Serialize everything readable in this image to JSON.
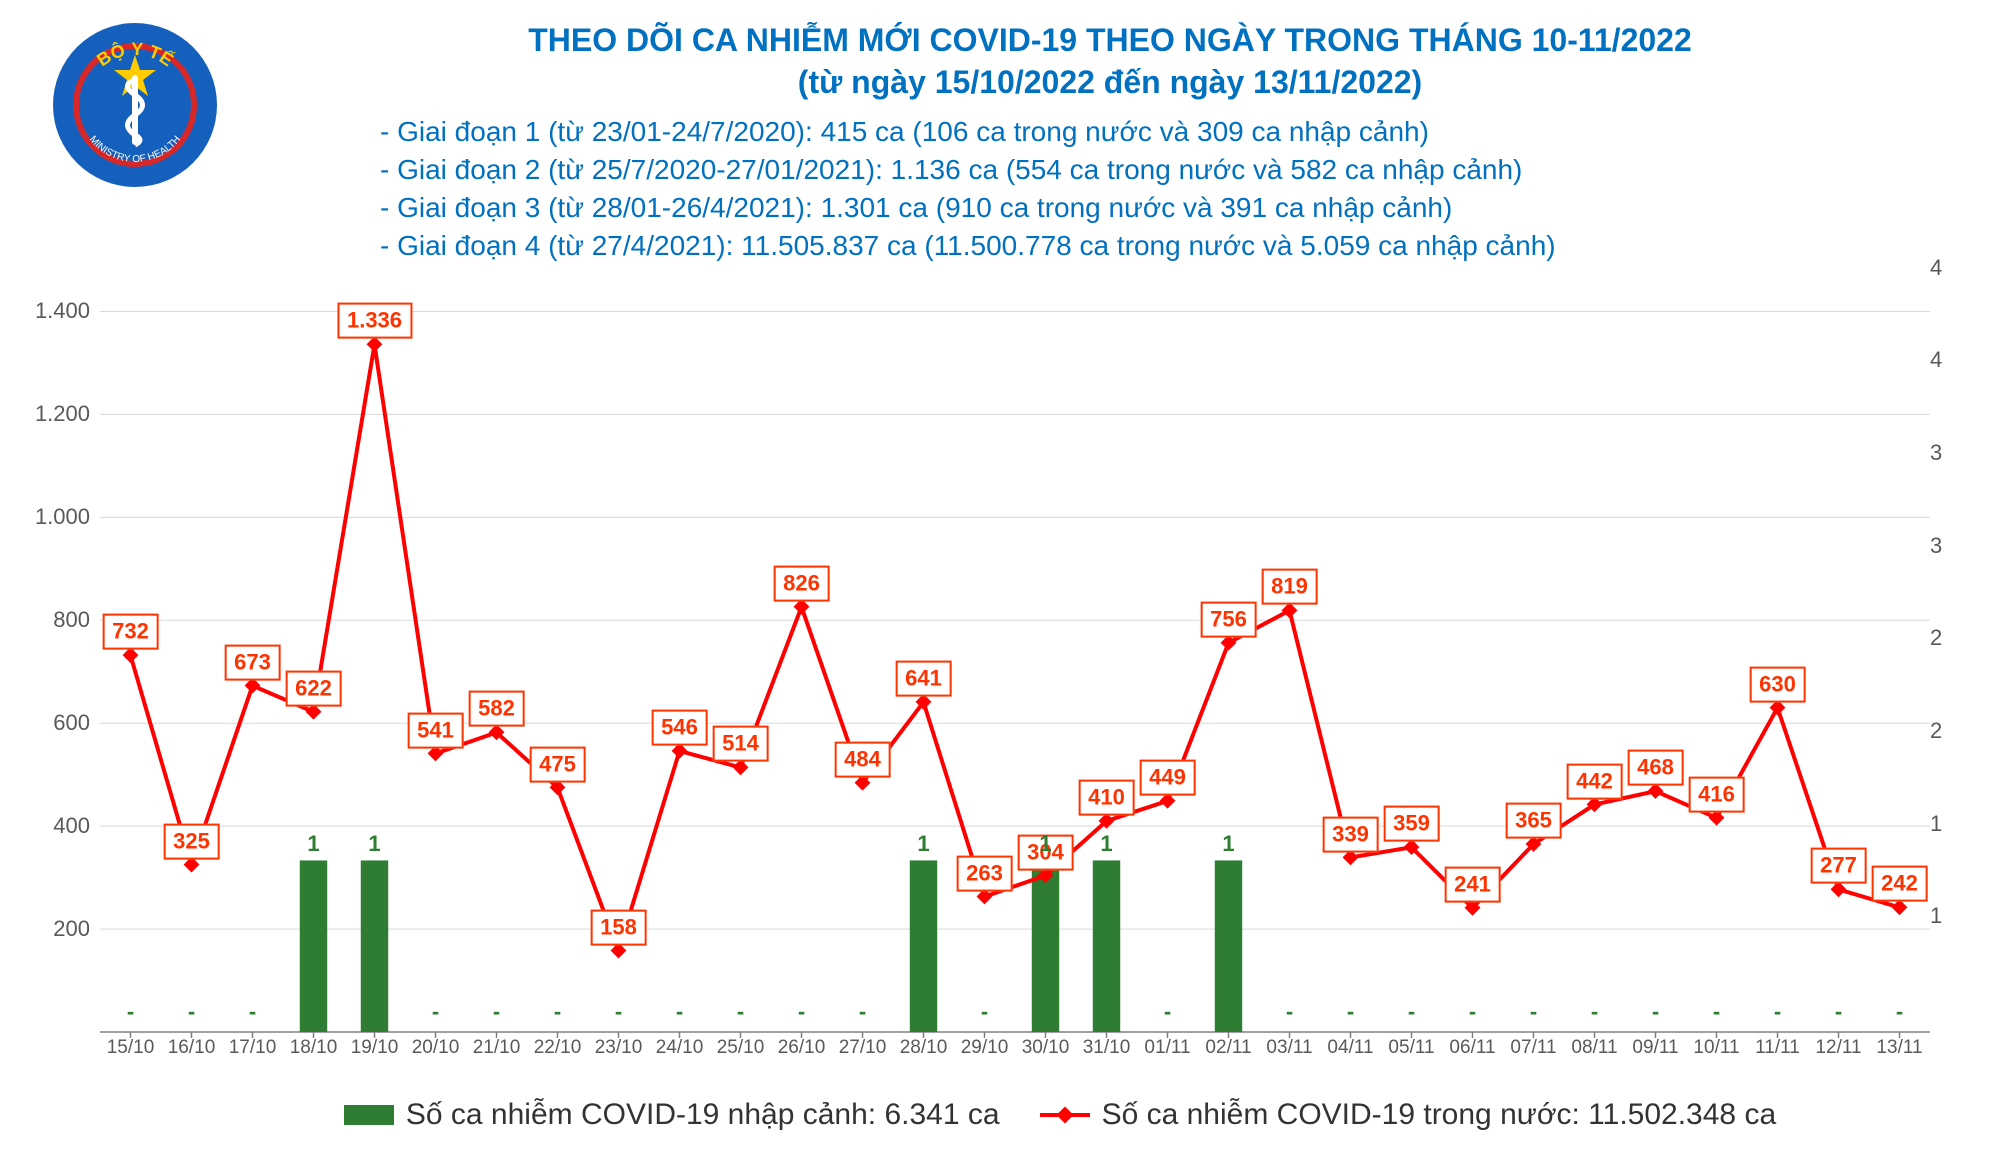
{
  "title": {
    "line1": "THEO DÕI CA NHIỄM MỚI COVID-19 THEO NGÀY TRONG THÁNG 10-11/2022",
    "line2": "(từ ngày 15/10/2022 đến ngày 13/11/2022)"
  },
  "sub_lines": [
    "- Giai đoạn 1 (từ 23/01-24/7/2020): 415 ca (106 ca trong nước và 309 ca nhập cảnh)",
    "- Giai đoạn 2 (từ 25/7/2020-27/01/2021): 1.136 ca (554 ca trong nước và 582 ca nhập cảnh)",
    "- Giai đoạn 3 (từ 28/01-26/4/2021): 1.301 ca (910 ca trong nước và 391 ca nhập cảnh)",
    "- Giai đoạn 4 (từ 27/4/2021): 11.505.837 ca (11.500.778 ca trong nước và 5.059 ca nhập cảnh)"
  ],
  "chart": {
    "type": "combo-bar-line",
    "categories": [
      "15/10",
      "16/10",
      "17/10",
      "18/10",
      "19/10",
      "20/10",
      "21/10",
      "22/10",
      "23/10",
      "24/10",
      "25/10",
      "26/10",
      "27/10",
      "28/10",
      "29/10",
      "30/10",
      "31/10",
      "01/11",
      "02/11",
      "03/11",
      "04/11",
      "05/11",
      "06/11",
      "07/11",
      "08/11",
      "09/11",
      "10/11",
      "11/11",
      "12/11",
      "13/11"
    ],
    "line_series": {
      "name": "domestic",
      "color": "#ff0000",
      "marker": "diamond",
      "marker_size": 8,
      "line_width": 4,
      "values": [
        732,
        325,
        673,
        622,
        1336,
        541,
        582,
        475,
        158,
        546,
        514,
        826,
        484,
        641,
        263,
        304,
        410,
        449,
        756,
        819,
        339,
        359,
        241,
        365,
        442,
        468,
        416,
        630,
        277,
        242
      ],
      "label_color": "#ff3300",
      "label_border": "#ff3300",
      "label_bg": "#ffffff"
    },
    "bar_series": {
      "name": "imported",
      "color": "#2e7d32",
      "bar_width": 0.45,
      "values": [
        0,
        0,
        0,
        1,
        1,
        0,
        0,
        0,
        0,
        0,
        0,
        0,
        0,
        1,
        0,
        1,
        1,
        0,
        1,
        0,
        0,
        0,
        0,
        0,
        0,
        0,
        0,
        0,
        0,
        0
      ],
      "label_color": "#2e7d32"
    },
    "y_left": {
      "min": 0,
      "max": 1500,
      "ticks": [
        200,
        400,
        600,
        800,
        1000,
        1200,
        1400
      ],
      "tick_labels": [
        "200",
        "400",
        "600",
        "800",
        "1.000",
        "1.200",
        "1.400"
      ]
    },
    "y_right": {
      "min": 0,
      "max": 4.5,
      "ticks": [
        1,
        1,
        2,
        2,
        3,
        3,
        4,
        4
      ],
      "positions": [
        0.15,
        0.27,
        0.39,
        0.51,
        0.63,
        0.75,
        0.87,
        0.99
      ]
    },
    "grid_color": "#d9d9d9",
    "background": "#ffffff",
    "label_fontsize": 22
  },
  "legend": {
    "bar_text": "Số ca nhiễm COVID-19 nhập cảnh: 6.341 ca",
    "line_text": "Số ca nhiễm COVID-19 trong nước: 11.502.348 ca"
  },
  "logo": {
    "outer_text_top": "BỘ Y TẾ",
    "outer_text_bottom": "MINISTRY OF HEALTH",
    "ring_bg": "#1560bd",
    "ring_inner": "#d62828",
    "star_color": "#ffcc00",
    "staff_color": "#ffffff"
  }
}
